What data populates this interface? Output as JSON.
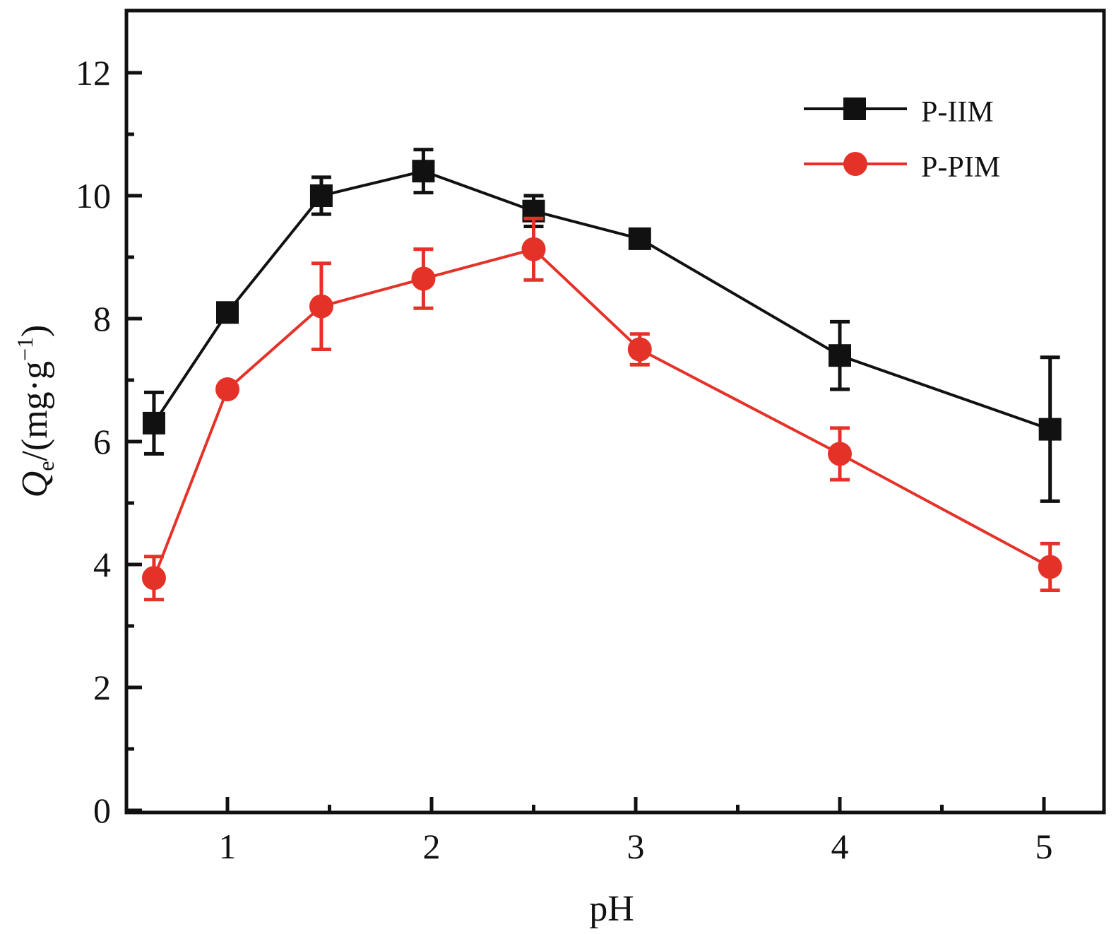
{
  "chart_data": {
    "type": "line",
    "title": "",
    "xlabel": "pH",
    "ylabel": {
      "symbol": "Q",
      "subscript": "e",
      "unit_prefix": "/(mg·g",
      "superscript": "−1",
      "unit_suffix": ")"
    },
    "xlim": [
      0.5,
      5.2
    ],
    "ylim": [
      0,
      13
    ],
    "x_ticks": [
      1,
      2,
      3,
      4,
      5
    ],
    "x_tick_labels": [
      "1",
      "2",
      "3",
      "4",
      "5"
    ],
    "x_minor_ticks": [
      1.5,
      2.5,
      3.5,
      4.5
    ],
    "y_ticks": [
      0,
      2,
      4,
      6,
      8,
      10,
      12
    ],
    "y_tick_labels": [
      "0",
      "2",
      "4",
      "6",
      "8",
      "10",
      "12"
    ],
    "y_minor_ticks": [
      1,
      3,
      5,
      7,
      9,
      11
    ],
    "grid": false,
    "legend_position": "top-right",
    "series": [
      {
        "name": "P-IIM",
        "color": "#111111",
        "marker": "square",
        "x": [
          0.64,
          1.0,
          1.46,
          1.96,
          2.5,
          3.02,
          4.0,
          5.03
        ],
        "y": [
          6.3,
          8.1,
          10.0,
          10.4,
          9.75,
          9.3,
          7.4,
          6.2
        ],
        "error": [
          0.5,
          0.05,
          0.3,
          0.35,
          0.25,
          0.05,
          0.55,
          1.17
        ]
      },
      {
        "name": "P-PIM",
        "color": "#e53229",
        "marker": "circle",
        "x": [
          0.64,
          1.0,
          1.46,
          1.96,
          2.5,
          3.02,
          4.0,
          5.03
        ],
        "y": [
          3.78,
          6.85,
          8.2,
          8.65,
          9.13,
          7.5,
          5.8,
          3.96
        ],
        "error": [
          0.35,
          0.05,
          0.7,
          0.48,
          0.5,
          0.25,
          0.42,
          0.38
        ]
      }
    ]
  }
}
